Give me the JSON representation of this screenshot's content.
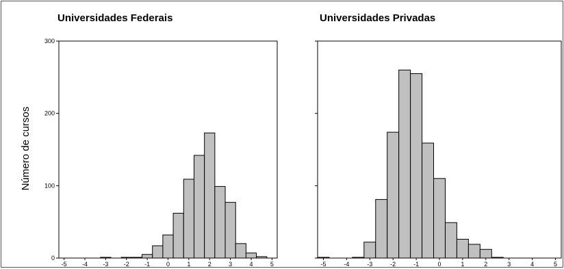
{
  "chart_data": {
    "type": "bar",
    "ylabel": "Número de cursos",
    "ylim": [
      0,
      300
    ],
    "y_ticks": [
      0,
      100,
      200,
      300
    ],
    "x_ticks": [
      -5,
      -4,
      -3,
      -2,
      -1,
      0,
      1,
      2,
      3,
      4,
      5
    ],
    "bar_color": "#c0c0c0",
    "panels": [
      {
        "title": "Universidades Federais",
        "xlim": [
          -5.25,
          5.25
        ],
        "bin_width": 0.5,
        "bins": [
          {
            "x": -3.0,
            "value": 1
          },
          {
            "x": -2.0,
            "value": 1
          },
          {
            "x": -1.5,
            "value": 1
          },
          {
            "x": -1.0,
            "value": 5
          },
          {
            "x": -0.5,
            "value": 17
          },
          {
            "x": 0.0,
            "value": 32
          },
          {
            "x": 0.5,
            "value": 62
          },
          {
            "x": 1.0,
            "value": 109
          },
          {
            "x": 1.5,
            "value": 142
          },
          {
            "x": 2.0,
            "value": 173
          },
          {
            "x": 2.5,
            "value": 99
          },
          {
            "x": 3.0,
            "value": 77
          },
          {
            "x": 3.5,
            "value": 20
          },
          {
            "x": 4.0,
            "value": 7
          },
          {
            "x": 4.5,
            "value": 2
          }
        ]
      },
      {
        "title": "Universidades Privadas",
        "xlim": [
          -5.25,
          5.25
        ],
        "bin_width": 0.5,
        "bins": [
          {
            "x": -5.0,
            "value": 1
          },
          {
            "x": -3.5,
            "value": 1
          },
          {
            "x": -3.0,
            "value": 22
          },
          {
            "x": -2.5,
            "value": 81
          },
          {
            "x": -2.0,
            "value": 174
          },
          {
            "x": -1.5,
            "value": 260
          },
          {
            "x": -1.0,
            "value": 255
          },
          {
            "x": -0.5,
            "value": 159
          },
          {
            "x": 0.0,
            "value": 110
          },
          {
            "x": 0.5,
            "value": 49
          },
          {
            "x": 1.0,
            "value": 26
          },
          {
            "x": 1.5,
            "value": 19
          },
          {
            "x": 2.0,
            "value": 12
          },
          {
            "x": 2.5,
            "value": 1
          }
        ]
      }
    ]
  }
}
